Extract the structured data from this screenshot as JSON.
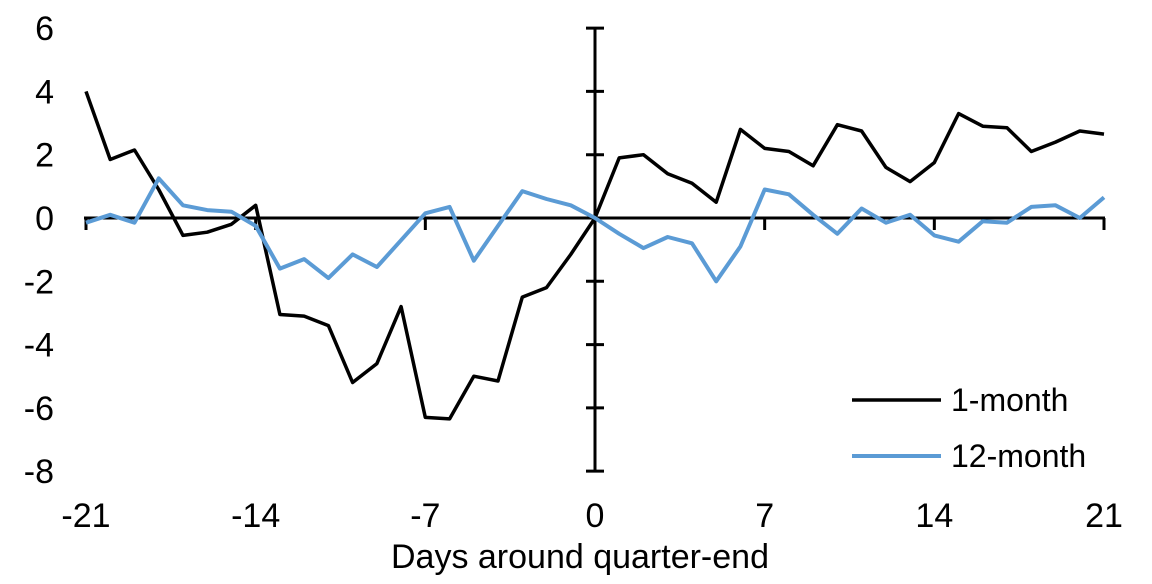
{
  "chart_data": {
    "type": "line",
    "title": "",
    "xlabel": "Days around quarter-end",
    "ylabel": "",
    "xlim": [
      -21,
      21
    ],
    "ylim": [
      -8,
      6
    ],
    "x_ticks": [
      -21,
      -14,
      -7,
      0,
      7,
      14,
      21
    ],
    "y_ticks": [
      6,
      4,
      2,
      0,
      -2,
      -4,
      -6,
      -8
    ],
    "grid": false,
    "background": "#FFFFFF",
    "axis_color": "#000000",
    "legend": {
      "position": "inside-bottom-right",
      "entries": [
        "1-month",
        "12-month"
      ]
    },
    "x": [
      -21,
      -20,
      -19,
      -18,
      -17,
      -16,
      -15,
      -14,
      -13,
      -12,
      -11,
      -10,
      -9,
      -8,
      -7,
      -6,
      -5,
      -4,
      -3,
      -2,
      -1,
      0,
      1,
      2,
      3,
      4,
      5,
      6,
      7,
      8,
      9,
      10,
      11,
      12,
      13,
      14,
      15,
      16,
      17,
      18,
      19,
      20,
      21
    ],
    "series": [
      {
        "name": "1-month",
        "color": "#000000",
        "values": [
          4.0,
          1.85,
          2.15,
          0.9,
          -0.55,
          -0.45,
          -0.2,
          0.4,
          -3.05,
          -3.1,
          -3.4,
          -5.2,
          -4.6,
          -2.8,
          -6.3,
          -6.35,
          -5.0,
          -5.15,
          -2.5,
          -2.2,
          -1.15,
          0.0,
          1.9,
          2.0,
          1.4,
          1.1,
          0.5,
          2.8,
          2.2,
          2.1,
          1.65,
          2.95,
          2.75,
          1.6,
          1.15,
          1.75,
          3.3,
          2.9,
          2.85,
          2.1,
          2.4,
          2.75,
          2.65
        ]
      },
      {
        "name": "12-month",
        "color": "#5B9BD5",
        "values": [
          -0.15,
          0.1,
          -0.15,
          1.25,
          0.4,
          0.25,
          0.2,
          -0.25,
          -1.6,
          -1.3,
          -1.9,
          -1.15,
          -1.55,
          -0.7,
          0.15,
          0.35,
          -1.35,
          -0.25,
          0.85,
          0.6,
          0.4,
          0.0,
          -0.5,
          -0.95,
          -0.6,
          -0.8,
          -2.0,
          -0.9,
          0.9,
          0.75,
          0.1,
          -0.5,
          0.3,
          -0.15,
          0.1,
          -0.55,
          -0.75,
          -0.1,
          -0.15,
          0.35,
          0.4,
          0.0,
          0.65
        ]
      }
    ]
  }
}
